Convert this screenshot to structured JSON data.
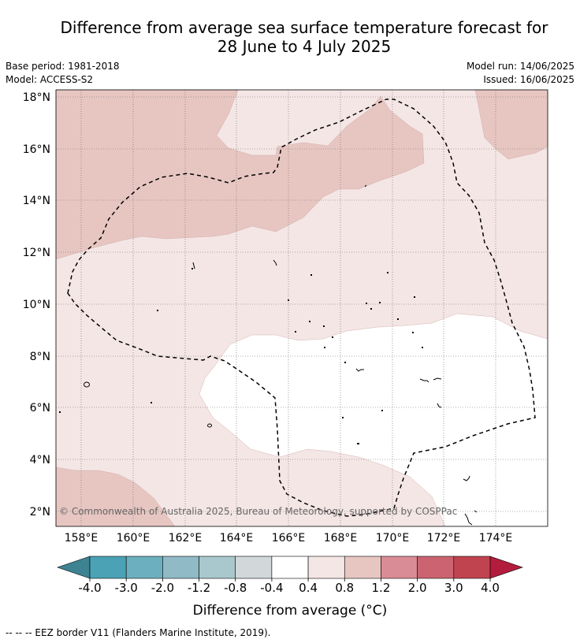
{
  "header": {
    "title_line1": "Difference from average sea surface temperature forecast for",
    "title_line2": "28 June to 4 July 2025",
    "base_period": "Base period: 1981-2018",
    "model": "Model: ACCESS-S2",
    "model_run": "Model run: 14/06/2025",
    "issued": "Issued: 16/06/2025"
  },
  "map": {
    "lat_labels": [
      "18°N",
      "16°N",
      "14°N",
      "12°N",
      "10°N",
      "8°N",
      "6°N",
      "4°N",
      "2°N"
    ],
    "lon_labels": [
      "158°E",
      "160°E",
      "162°E",
      "164°E",
      "166°E",
      "168°E",
      "170°E",
      "172°E",
      "174°E"
    ],
    "copyright": "© Commonwealth of Australia 2025, Bureau of Meteorology, supported by COSPPac",
    "colors": {
      "light_warm": "#f4e6e5",
      "warm": "#e7c6c2",
      "neutral": "#ffffff"
    }
  },
  "colorbar": {
    "ticks": [
      "-4.0",
      "-3.0",
      "-2.0",
      "-1.2",
      "-0.8",
      "-0.4",
      "0.4",
      "0.8",
      "1.2",
      "2.0",
      "3.0",
      "4.0"
    ],
    "colors": [
      "#3d8391",
      "#4aa2b4",
      "#6cb0bf",
      "#8fbac6",
      "#a9c8cd",
      "#d2d8d9",
      "#ffffff",
      "#f4e6e5",
      "#e7c6c2",
      "#d98c95",
      "#cb6470",
      "#c0444f",
      "#b31c3c"
    ],
    "label": "Difference from average (°C)"
  },
  "footer": "-- -- -- EEZ border V11 (Flanders Marine Institute, 2019)."
}
